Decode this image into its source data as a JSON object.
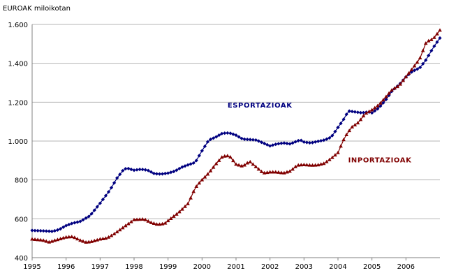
{
  "chart_data": {
    "type": "line",
    "unit_label": "EUROAK miloikotan",
    "ylim": [
      400,
      1600
    ],
    "yticks": [
      {
        "value": 400,
        "label": "400"
      },
      {
        "value": 600,
        "label": "600"
      },
      {
        "value": 800,
        "label": "800"
      },
      {
        "value": 1000,
        "label": "1.000"
      },
      {
        "value": 1200,
        "label": "1.200"
      },
      {
        "value": 1400,
        "label": "1.400"
      },
      {
        "value": 1600,
        "label": "1.600"
      }
    ],
    "xlim": [
      1995,
      2007
    ],
    "xticks": [
      {
        "value": 1995,
        "label": "1995"
      },
      {
        "value": 1996,
        "label": "1996"
      },
      {
        "value": 1997,
        "label": "1997"
      },
      {
        "value": 1998,
        "label": "1998"
      },
      {
        "value": 1999,
        "label": "1999"
      },
      {
        "value": 2000,
        "label": "2000"
      },
      {
        "value": 2001,
        "label": "2001"
      },
      {
        "value": 2002,
        "label": "2002"
      },
      {
        "value": 2003,
        "label": "2003"
      },
      {
        "value": 2004,
        "label": "2004"
      },
      {
        "value": 2005,
        "label": "2005"
      },
      {
        "value": 2006,
        "label": "2006"
      }
    ],
    "grid": true,
    "series": [
      {
        "name": "ESPORTAZIOAK",
        "color": "#000080",
        "marker": "diamond",
        "anchors": [
          [
            1995.0,
            540
          ],
          [
            1995.3,
            538
          ],
          [
            1995.6,
            535
          ],
          [
            1995.8,
            545
          ],
          [
            1996.0,
            565
          ],
          [
            1996.2,
            578
          ],
          [
            1996.4,
            585
          ],
          [
            1996.7,
            615
          ],
          [
            1997.0,
            680
          ],
          [
            1997.3,
            750
          ],
          [
            1997.5,
            810
          ],
          [
            1997.7,
            855
          ],
          [
            1997.8,
            860
          ],
          [
            1998.0,
            850
          ],
          [
            1998.2,
            855
          ],
          [
            1998.4,
            850
          ],
          [
            1998.6,
            832
          ],
          [
            1998.8,
            830
          ],
          [
            1999.0,
            835
          ],
          [
            1999.2,
            845
          ],
          [
            1999.4,
            865
          ],
          [
            1999.6,
            878
          ],
          [
            1999.8,
            890
          ],
          [
            2000.0,
            950
          ],
          [
            2000.2,
            1005
          ],
          [
            2000.4,
            1020
          ],
          [
            2000.6,
            1040
          ],
          [
            2000.8,
            1042
          ],
          [
            2001.0,
            1030
          ],
          [
            2001.2,
            1010
          ],
          [
            2001.4,
            1008
          ],
          [
            2001.6,
            1005
          ],
          [
            2001.8,
            990
          ],
          [
            2002.0,
            975
          ],
          [
            2002.2,
            985
          ],
          [
            2002.4,
            990
          ],
          [
            2002.6,
            985
          ],
          [
            2002.8,
            1000
          ],
          [
            2002.9,
            1005
          ],
          [
            2003.0,
            995
          ],
          [
            2003.2,
            990
          ],
          [
            2003.4,
            998
          ],
          [
            2003.6,
            1005
          ],
          [
            2003.8,
            1020
          ],
          [
            2004.0,
            1070
          ],
          [
            2004.2,
            1120
          ],
          [
            2004.3,
            1155
          ],
          [
            2004.5,
            1150
          ],
          [
            2004.7,
            1145
          ],
          [
            2004.9,
            1150
          ],
          [
            2005.0,
            1145
          ],
          [
            2005.2,
            1170
          ],
          [
            2005.4,
            1210
          ],
          [
            2005.6,
            1260
          ],
          [
            2005.8,
            1290
          ],
          [
            2006.0,
            1330
          ],
          [
            2006.2,
            1360
          ],
          [
            2006.4,
            1375
          ],
          [
            2006.6,
            1420
          ],
          [
            2006.8,
            1480
          ],
          [
            2007.0,
            1530
          ]
        ]
      },
      {
        "name": "INPORTAZIOAK",
        "color": "#800000",
        "marker": "triangle",
        "anchors": [
          [
            1995.0,
            495
          ],
          [
            1995.3,
            490
          ],
          [
            1995.5,
            480
          ],
          [
            1995.7,
            490
          ],
          [
            1996.0,
            505
          ],
          [
            1996.2,
            508
          ],
          [
            1996.4,
            490
          ],
          [
            1996.6,
            478
          ],
          [
            1996.8,
            485
          ],
          [
            1997.0,
            495
          ],
          [
            1997.2,
            500
          ],
          [
            1997.4,
            520
          ],
          [
            1997.6,
            545
          ],
          [
            1997.8,
            570
          ],
          [
            1998.0,
            595
          ],
          [
            1998.3,
            598
          ],
          [
            1998.5,
            580
          ],
          [
            1998.7,
            570
          ],
          [
            1998.9,
            575
          ],
          [
            1999.0,
            590
          ],
          [
            1999.3,
            630
          ],
          [
            1999.6,
            680
          ],
          [
            1999.8,
            760
          ],
          [
            2000.0,
            800
          ],
          [
            2000.2,
            835
          ],
          [
            2000.4,
            880
          ],
          [
            2000.6,
            920
          ],
          [
            2000.8,
            925
          ],
          [
            2001.0,
            880
          ],
          [
            2001.2,
            870
          ],
          [
            2001.4,
            895
          ],
          [
            2001.6,
            865
          ],
          [
            2001.8,
            835
          ],
          [
            2002.0,
            840
          ],
          [
            2002.2,
            840
          ],
          [
            2002.4,
            835
          ],
          [
            2002.6,
            845
          ],
          [
            2002.8,
            875
          ],
          [
            2003.0,
            878
          ],
          [
            2003.2,
            875
          ],
          [
            2003.4,
            876
          ],
          [
            2003.6,
            885
          ],
          [
            2003.8,
            910
          ],
          [
            2004.0,
            940
          ],
          [
            2004.2,
            1020
          ],
          [
            2004.4,
            1070
          ],
          [
            2004.6,
            1095
          ],
          [
            2004.8,
            1140
          ],
          [
            2005.0,
            1160
          ],
          [
            2005.2,
            1185
          ],
          [
            2005.4,
            1225
          ],
          [
            2005.6,
            1265
          ],
          [
            2005.8,
            1285
          ],
          [
            2006.0,
            1330
          ],
          [
            2006.2,
            1375
          ],
          [
            2006.4,
            1420
          ],
          [
            2006.6,
            1510
          ],
          [
            2006.8,
            1525
          ],
          [
            2007.0,
            1570
          ]
        ]
      }
    ],
    "annotations": [
      {
        "text": "ESPORTAZIOAK",
        "series": 0
      },
      {
        "text": "INPORTAZIOAK",
        "series": 1
      }
    ]
  }
}
